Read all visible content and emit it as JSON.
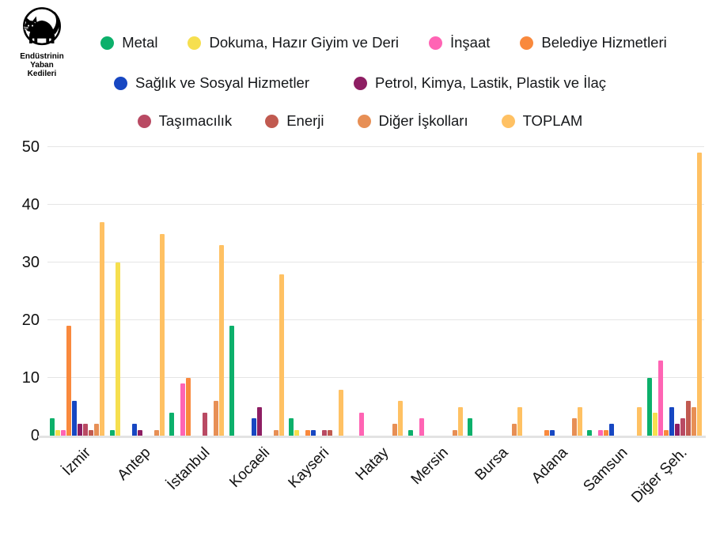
{
  "logo": {
    "icon": "black-cat-icon",
    "line1": "Endüstrinin",
    "line2": "Yaban",
    "line3": "Kedileri"
  },
  "chart_data": {
    "type": "bar",
    "title": "",
    "xlabel": "",
    "ylabel": "",
    "ylim": [
      0,
      50
    ],
    "yticks": [
      0,
      10,
      20,
      30,
      40,
      50
    ],
    "grid": true,
    "legend_position": "top",
    "categories": [
      "İzmir",
      "Antep",
      "İstanbul",
      "Kocaeli",
      "Kayseri",
      "Hatay",
      "Mersin",
      "Bursa",
      "Adana",
      "Samsun",
      "Diğer Şeh."
    ],
    "series": [
      {
        "name": "Metal",
        "color": "#0cb06b",
        "values": [
          3,
          1,
          4,
          19,
          3,
          0,
          1,
          3,
          0,
          1,
          10
        ]
      },
      {
        "name": "Dokuma, Hazır Giyim ve Deri",
        "color": "#f6df4f",
        "values": [
          1,
          30,
          0,
          0,
          1,
          0,
          0,
          0,
          0,
          0,
          4
        ]
      },
      {
        "name": "İnşaat",
        "color": "#ff64b4",
        "values": [
          1,
          0,
          9,
          0,
          0,
          4,
          3,
          0,
          0,
          1,
          13
        ]
      },
      {
        "name": "Belediye Hizmetleri",
        "color": "#f9893d",
        "values": [
          19,
          0,
          10,
          0,
          1,
          0,
          0,
          0,
          1,
          1,
          1
        ]
      },
      {
        "name": "Sağlık ve Sosyal Hizmetler",
        "color": "#1747c2",
        "values": [
          6,
          2,
          0,
          3,
          1,
          0,
          0,
          0,
          1,
          2,
          5
        ]
      },
      {
        "name": "Petrol, Kimya, Lastik, Plastik ve İlaç",
        "color": "#8e1e63",
        "values": [
          2,
          1,
          0,
          5,
          0,
          0,
          0,
          0,
          0,
          0,
          2
        ]
      },
      {
        "name": "Taşımacılık",
        "color": "#b94a63",
        "values": [
          2,
          0,
          4,
          0,
          1,
          0,
          0,
          0,
          0,
          0,
          3
        ]
      },
      {
        "name": "Enerji",
        "color": "#c15a50",
        "values": [
          1,
          0,
          0,
          0,
          1,
          0,
          0,
          0,
          0,
          0,
          6
        ]
      },
      {
        "name": "Diğer İşkolları",
        "color": "#e78f55",
        "values": [
          2,
          1,
          6,
          1,
          0,
          2,
          1,
          2,
          3,
          0,
          5
        ]
      },
      {
        "name": "TOPLAM",
        "color": "#ffc163",
        "values": [
          37,
          35,
          33,
          28,
          8,
          6,
          5,
          5,
          5,
          5,
          49
        ]
      }
    ],
    "legend_rows": [
      [
        0,
        1,
        2,
        3
      ],
      [
        4,
        5
      ],
      [
        6,
        7,
        8,
        9
      ]
    ],
    "colors": {
      "gridline": "#e5e5e5",
      "baseline": "#e3e3e3",
      "axis_text": "#121212"
    }
  }
}
